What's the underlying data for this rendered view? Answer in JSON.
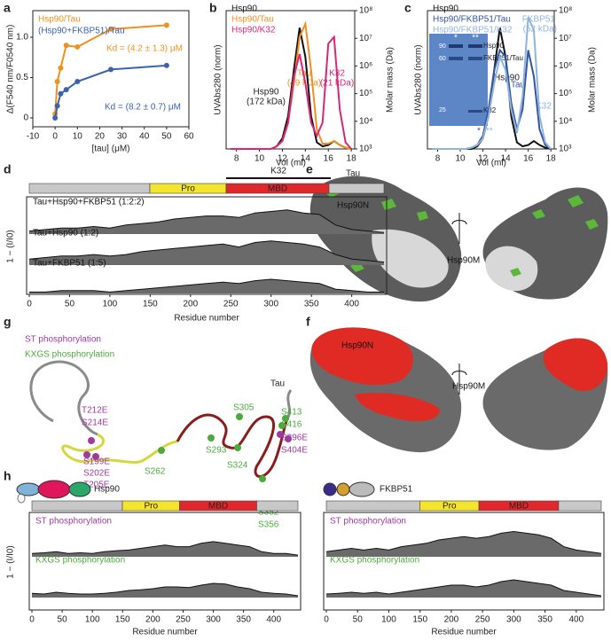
{
  "panel_labels": [
    "a",
    "b",
    "c",
    "d",
    "e",
    "f",
    "g",
    "h"
  ],
  "chart_data": [
    {
      "type": "scatter",
      "series": [
        {
          "name": "Hsp90/Tau",
          "color": "#f0901e",
          "x": [
            0,
            1,
            2.5,
            5,
            10,
            25,
            50
          ],
          "values": [
            0.05,
            0.45,
            0.62,
            0.9,
            0.88,
            1.1,
            1.15
          ]
        },
        {
          "name": "(Hsp90+FKBP51)/Tau",
          "color": "#3a62b0",
          "x": [
            0,
            1,
            2.5,
            5,
            10,
            25,
            50
          ],
          "values": [
            0,
            0.15,
            0.3,
            0.35,
            0.45,
            0.6,
            0.65
          ]
        }
      ],
      "annotations": [
        "Kd = (4.2 ± 1.3) μM",
        "Kd = (8.2 ± 0.7) μM"
      ],
      "xlim": [
        -10,
        60
      ],
      "ylim": [
        -0.11,
        1.33
      ],
      "xticks": [
        -10,
        0,
        10,
        20,
        30,
        40,
        50,
        60
      ],
      "yticks": [
        0,
        0.5,
        {
          "value": 1,
          "label": "1.0"
        }
      ],
      "xlabel": "[tau] (μM)",
      "ylabel": "Δ(F540 nm/F0540 nm)"
    },
    {
      "type": "line",
      "x": [
        7.5,
        8,
        8.5,
        9,
        9.5,
        10,
        10.5,
        11,
        11.5,
        12,
        12.5,
        13,
        13.5,
        14,
        14.5,
        15,
        15.5,
        16,
        16.5,
        17,
        17.5,
        18
      ],
      "series": [
        {
          "name": "Hsp90",
          "color": "#111111",
          "values": [
            0,
            0,
            0,
            0,
            0,
            0,
            0,
            0,
            0.02,
            0.08,
            0.25,
            0.6,
            0.92,
            0.7,
            0.25,
            0.05,
            0.02,
            0.03,
            0.06,
            0.03,
            0.01,
            0
          ]
        },
        {
          "name": "Hsp90/Tau",
          "color": "#f0901e",
          "values": [
            0,
            0,
            0,
            0,
            0,
            0,
            0,
            0,
            0.02,
            0.06,
            0.2,
            0.5,
            0.85,
            0.95,
            0.6,
            0.15,
            0.04,
            0.04,
            0.06,
            0.03,
            0.01,
            0
          ]
        },
        {
          "name": "Hsp90/K32",
          "color": "#d9267a",
          "values": [
            0,
            0,
            0,
            0,
            0,
            0,
            0,
            0,
            0.02,
            0.06,
            0.2,
            0.55,
            0.72,
            0.5,
            0.2,
            0.1,
            0.2,
            0.8,
            0.85,
            0.3,
            0.05,
            0
          ]
        }
      ],
      "annotations": [
        "Tau",
        "(49 kDa)",
        "K32",
        "(21 kDa)",
        "Hsp90",
        "(172 kDa)"
      ],
      "xlim": [
        7.1,
        18.3
      ],
      "xticks": [
        8,
        10,
        12,
        14,
        16,
        18
      ],
      "ylim": [
        0,
        1.05
      ],
      "y2lim": [
        1000,
        100000000
      ],
      "y2log": true,
      "y2ticks": [
        {
          "value": 1000,
          "label": "10³"
        },
        {
          "value": 10000,
          "label": "10⁴"
        },
        {
          "value": 100000,
          "label": "10⁵"
        },
        {
          "value": 1000000,
          "label": "10⁶"
        },
        {
          "value": 10000000,
          "label": "10⁷"
        },
        {
          "value": 100000000,
          "label": "10⁸"
        }
      ],
      "xlabel": "Vol (ml)",
      "ylabel": "UVAbs280 (norm)",
      "y2label": "Molar mass (Da)"
    },
    {
      "type": "line",
      "x": [
        7.5,
        8,
        8.5,
        9,
        9.5,
        10,
        10.5,
        11,
        11.5,
        12,
        12.5,
        13,
        13.5,
        14,
        14.5,
        15,
        15.5,
        16,
        16.5,
        17,
        17.5,
        18
      ],
      "series": [
        {
          "name": "Hsp90",
          "color": "#111111",
          "values": [
            0,
            0,
            0,
            0,
            0,
            0,
            0,
            0,
            0.02,
            0.08,
            0.25,
            0.6,
            0.92,
            0.7,
            0.25,
            0.05,
            0.02,
            0.03,
            0.06,
            0.03,
            0.01,
            0
          ]
        },
        {
          "name": "Hsp90/FKBP51/Tau",
          "color": "#2f55a4",
          "values": [
            0,
            0,
            0,
            0,
            0,
            0,
            0,
            0.01,
            0.03,
            0.1,
            0.3,
            0.6,
            0.75,
            0.7,
            0.35,
            0.15,
            0.3,
            0.75,
            0.55,
            0.15,
            0.03,
            0
          ]
        },
        {
          "name": "Hsp90/FKBP51/K32",
          "color": "#8fb3de",
          "values": [
            0,
            0,
            0,
            0,
            0,
            0,
            0,
            0.01,
            0.03,
            0.08,
            0.25,
            0.5,
            0.7,
            0.6,
            0.3,
            0.12,
            0.4,
            1.0,
            0.9,
            0.25,
            0.05,
            0
          ]
        }
      ],
      "annotations": [
        "Hsp90",
        "Tau",
        "FKBP51",
        "(52 kDa)",
        "K32",
        "*",
        "**"
      ],
      "gel": {
        "lane_marks": [
          "*",
          "**"
        ],
        "markers": [
          "90",
          "60",
          "25"
        ],
        "bands": [
          "Hsp90",
          "FKBP51/Tau",
          "K32"
        ]
      },
      "xlim": [
        7.1,
        18.3
      ],
      "xticks": [
        8,
        10,
        12,
        14,
        16,
        18
      ],
      "ylim": [
        0,
        1.05
      ],
      "y2lim": [
        1000,
        100000000
      ],
      "y2log": true,
      "y2ticks": [
        {
          "value": 1000,
          "label": "10³"
        },
        {
          "value": 10000,
          "label": "10⁴"
        },
        {
          "value": 100000,
          "label": "10⁵"
        },
        {
          "value": 1000000,
          "label": "10⁶"
        },
        {
          "value": 10000000,
          "label": "10⁷"
        },
        {
          "value": 100000000,
          "label": "10⁸"
        }
      ],
      "xlabel": "Vol (ml)",
      "ylabel": "UVAbs280 (norm)",
      "y2label": "Molar mass (Da)"
    },
    {
      "type": "profile",
      "domains": [
        "Pro",
        "MBD",
        "Tau"
      ],
      "bracket": "K32",
      "x": [
        0,
        20,
        40,
        60,
        80,
        100,
        120,
        140,
        160,
        180,
        200,
        220,
        240,
        260,
        280,
        300,
        320,
        340,
        360,
        380,
        400,
        420,
        440
      ],
      "series": [
        {
          "name": "Tau+Hsp90+FKBP51 (1:2:2)",
          "color": "#111111",
          "values": [
            0.1,
            0.15,
            0.2,
            0.2,
            0.25,
            0.2,
            0.3,
            0.35,
            0.4,
            0.5,
            0.55,
            0.6,
            0.6,
            0.55,
            0.7,
            0.75,
            0.8,
            0.7,
            0.65,
            0.3,
            0.15,
            0.1,
            0.05
          ]
        },
        {
          "name": "Tau+Hsp90 (1:2)",
          "color": "#111111",
          "values": [
            0.2,
            0.25,
            0.3,
            0.3,
            0.35,
            0.3,
            0.35,
            0.45,
            0.5,
            0.55,
            0.6,
            0.65,
            0.7,
            0.6,
            0.75,
            0.8,
            0.75,
            0.7,
            0.6,
            0.35,
            0.2,
            0.15,
            0.1
          ]
        },
        {
          "name": "Tau+FKBP51 (1:5)",
          "color": "#111111",
          "values": [
            0.05,
            0.05,
            0.1,
            0.1,
            0.1,
            0.05,
            0.1,
            0.15,
            0.2,
            0.25,
            0.3,
            0.35,
            0.4,
            0.35,
            0.45,
            0.5,
            0.45,
            0.4,
            0.35,
            0.15,
            0.1,
            0.05,
            0.05
          ]
        }
      ],
      "xlim": [
        0,
        440
      ],
      "ylim": [
        0,
        1
      ],
      "xticks": [
        0,
        50,
        100,
        150,
        200,
        250,
        300,
        350,
        400
      ],
      "xlabel": "Residue number",
      "ylabel": "1 − (I/I0)"
    },
    {
      "type": "profile",
      "title": "Hsp90",
      "domains": [
        "Pro",
        "MBD"
      ],
      "x": [
        0,
        20,
        40,
        60,
        80,
        100,
        120,
        140,
        160,
        180,
        200,
        220,
        240,
        260,
        280,
        300,
        320,
        340,
        360,
        380,
        400,
        420,
        440
      ],
      "series": [
        {
          "name": "ST phosphorylation",
          "color": "#a03aa0",
          "values": [
            0.1,
            0.12,
            0.15,
            0.1,
            0.12,
            0.1,
            0.15,
            0.18,
            0.2,
            0.25,
            0.3,
            0.35,
            0.3,
            0.3,
            0.4,
            0.45,
            0.4,
            0.35,
            0.3,
            0.15,
            0.1,
            0.1,
            0.05
          ]
        },
        {
          "name": "KXGS phosphorylation",
          "color": "#4caa3c",
          "values": [
            0.12,
            0.1,
            0.15,
            0.12,
            0.1,
            0.1,
            0.12,
            0.15,
            0.2,
            0.22,
            0.25,
            0.3,
            0.3,
            0.28,
            0.35,
            0.4,
            0.38,
            0.3,
            0.25,
            0.15,
            0.12,
            0.1,
            0.05
          ]
        }
      ],
      "xlim": [
        0,
        440
      ],
      "ylim": [
        0,
        1
      ],
      "xticks": [
        0,
        50,
        100,
        150,
        200,
        250,
        300,
        350,
        400
      ],
      "xlabel": "Residue number",
      "ylabel": "1 − (I/I0)"
    },
    {
      "type": "profile",
      "title": "FKBP51",
      "domains": [
        "Pro",
        "MBD"
      ],
      "x": [
        0,
        20,
        40,
        60,
        80,
        100,
        120,
        140,
        160,
        180,
        200,
        220,
        240,
        260,
        280,
        300,
        320,
        340,
        360,
        380,
        400,
        420,
        440
      ],
      "series": [
        {
          "name": "ST phosphorylation",
          "color": "#a03aa0",
          "values": [
            0.15,
            0.2,
            0.25,
            0.2,
            0.25,
            0.2,
            0.3,
            0.35,
            0.4,
            0.5,
            0.55,
            0.6,
            0.55,
            0.6,
            0.7,
            0.75,
            0.7,
            0.65,
            0.55,
            0.3,
            0.2,
            0.15,
            0.1
          ]
        },
        {
          "name": "KXGS phosphorylation",
          "color": "#4caa3c",
          "values": [
            0.1,
            0.12,
            0.15,
            0.12,
            0.15,
            0.1,
            0.15,
            0.2,
            0.25,
            0.3,
            0.35,
            0.35,
            0.3,
            0.35,
            0.45,
            0.5,
            0.45,
            0.4,
            0.35,
            0.2,
            0.15,
            0.1,
            0.05
          ]
        }
      ],
      "xlim": [
        0,
        440
      ],
      "ylim": [
        0,
        1
      ],
      "xticks": [
        0,
        50,
        100,
        150,
        200,
        250,
        300,
        350,
        400
      ],
      "xlabel": "Residue number"
    }
  ],
  "e": {
    "labels": [
      "Hsp90N",
      "Hsp90M"
    ]
  },
  "f": {
    "labels": [
      "Hsp90N",
      "Hsp90M"
    ]
  },
  "g": {
    "legend": [
      "ST phosphorylation",
      "KXGS phosphorylation"
    ],
    "chain": "Tau",
    "st_sites": [
      "T212E",
      "S214E",
      "S199E",
      "S202E",
      "T205E",
      "S396E",
      "S404E"
    ],
    "kxgs_sites": [
      "S262",
      "S293",
      "S305",
      "S324",
      "S352",
      "S356",
      "S413",
      "S416"
    ]
  }
}
